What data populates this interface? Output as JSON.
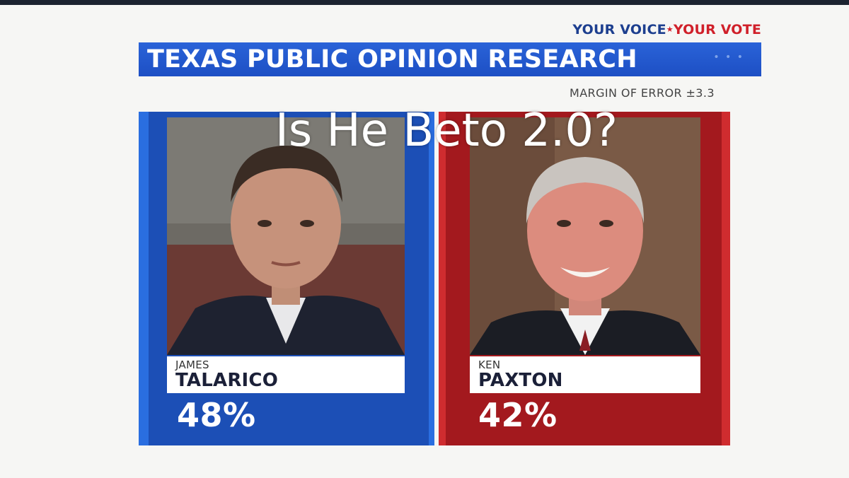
{
  "header": {
    "tagline_part1": "YOUR VOICE",
    "tagline_part2": "YOUR VOTE",
    "title": "TEXAS PUBLIC OPINION RESEARCH",
    "margin_of_error": "MARGIN OF ERROR ±3.3"
  },
  "overlay": {
    "caption": "Is He Beto 2.0?"
  },
  "candidates": [
    {
      "first_name": "JAMES",
      "last_name": "TALARICO",
      "percent": "48%",
      "color": "#1c4fb6"
    },
    {
      "first_name": "KEN",
      "last_name": "PAXTON",
      "percent": "42%",
      "color": "#a3191e"
    }
  ]
}
